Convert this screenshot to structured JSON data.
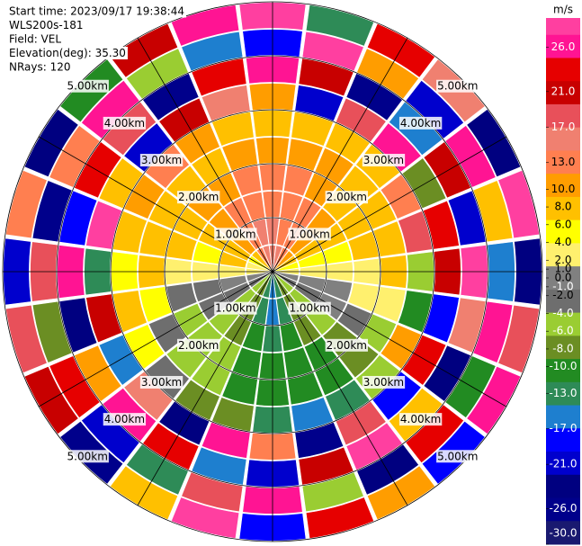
{
  "chart_data": {
    "type": "ppi",
    "info": [
      "Start time: 2023/09/17 19:38:44",
      "WLS200s-181",
      "Field: VEL",
      "Elevation(deg): 35.30",
      "NRays: 120"
    ],
    "rings": [
      {
        "value": 1,
        "label": "1.00km"
      },
      {
        "value": 2,
        "label": "2.00km"
      },
      {
        "value": 3,
        "label": "3.00km"
      },
      {
        "value": 4,
        "label": "4.00km"
      },
      {
        "value": 5,
        "label": "5.00km"
      }
    ],
    "rmax_km": 5,
    "azimuth_deg": [
      0,
      15,
      30,
      45,
      60,
      75,
      90,
      105,
      120,
      135,
      150,
      165,
      180,
      195,
      210,
      225,
      240,
      255,
      270,
      285,
      300,
      315,
      330,
      345
    ],
    "range_km": [
      0,
      0.5,
      1,
      1.5,
      2,
      2.5,
      3,
      3.5,
      4,
      4.5,
      5
    ],
    "values": [
      [
        9,
        9,
        8,
        7,
        5,
        3,
        5,
        22,
        -15,
        27
      ],
      [
        9,
        8,
        8,
        7,
        5,
        3,
        -20,
        14,
        28,
        -9
      ],
      [
        8,
        7,
        7,
        6,
        5,
        3,
        11,
        -27,
        6,
        18
      ],
      [
        6,
        6,
        5,
        4,
        3,
        3,
        24,
        -12,
        -19,
        9
      ],
      [
        4,
        4,
        3,
        3,
        2.5,
        7,
        -5,
        16,
        25,
        -24
      ],
      [
        2,
        2,
        1.5,
        2.5,
        3,
        12,
        20,
        -18,
        4,
        29
      ],
      [
        0.5,
        0.5,
        0.5,
        0.5,
        2.5,
        -3,
        15,
        27,
        -11,
        -22
      ],
      [
        -0.5,
        -0.5,
        -0.5,
        0.5,
        0.5,
        -7,
        -14,
        9,
        23,
        12
      ],
      [
        -1.5,
        -1.5,
        -0.5,
        -1.5,
        -3,
        5,
        18,
        -25,
        -7,
        26
      ],
      [
        -3,
        -3,
        -3,
        -5,
        -5,
        -3,
        -16,
        2.5,
        19,
        -13
      ],
      [
        -5,
        -5,
        -5,
        -7,
        -7,
        -9,
        11,
        28,
        -21,
        5
      ],
      [
        -9,
        -9,
        -7,
        -7,
        -7,
        -12,
        -27,
        15,
        -3,
        21
      ],
      [
        -11,
        -11,
        -9,
        -7,
        -7,
        -9,
        7,
        -19,
        25,
        -15
      ],
      [
        -9,
        -9,
        -7,
        -7,
        -7,
        -5,
        22,
        -10,
        13,
        28
      ],
      [
        -5,
        -5,
        -5,
        -3,
        -3,
        -5,
        -23,
        18,
        -8,
        3
      ],
      [
        -3,
        -3,
        -3,
        -3,
        -3,
        -1.5,
        9,
        26,
        -17,
        -26
      ],
      [
        -1.5,
        -1.5,
        -1.5,
        -3,
        -1.5,
        1.5,
        -12,
        5,
        20,
        14
      ],
      [
        -0.5,
        -0.5,
        -1.5,
        -1.5,
        1.5,
        3,
        16,
        -22,
        -4,
        11
      ],
      [
        0.5,
        0.5,
        0.5,
        0.5,
        2.5,
        1.5,
        -9,
        24,
        12,
        -19
      ],
      [
        0.5,
        2.5,
        1.5,
        2.5,
        3,
        3,
        27,
        -14,
        -28,
        7
      ],
      [
        1.5,
        3,
        3,
        3,
        3,
        5,
        3,
        19,
        8,
        -24
      ],
      [
        3,
        5,
        5,
        5,
        3,
        7,
        -18,
        11,
        23,
        -6
      ],
      [
        7,
        7,
        7,
        5,
        3,
        5,
        14,
        -26,
        -3,
        17
      ],
      [
        9,
        9,
        7,
        7,
        5,
        3,
        9,
        21,
        -12,
        25
      ]
    ],
    "colorbar": {
      "label": "m/s",
      "bounds": [
        30,
        26,
        21,
        17,
        13,
        10,
        8,
        6,
        4,
        2,
        1,
        0,
        -1,
        -2,
        -4,
        -6,
        -8,
        -10,
        -13,
        -17,
        -21,
        -26,
        -30
      ],
      "colors": [
        "#ff3fa0",
        "#ff1493",
        "#e60000",
        "#c80000",
        "#e8505a",
        "#f08070",
        "#ff7f50",
        "#ff9d00",
        "#ffc000",
        "#ffff00",
        "#fff06e",
        "#808080",
        "#6e6e6e",
        "#9acd32",
        "#6b8e23",
        "#228b22",
        "#2e8b57",
        "#1e7fcf",
        "#0000ff",
        "#0000cd",
        "#000080",
        "#00008b",
        "#191970"
      ],
      "ticks": [
        {
          "value": 26,
          "label": "26.0"
        },
        {
          "value": 21,
          "label": "21.0"
        },
        {
          "value": 17,
          "label": "17.0"
        },
        {
          "value": 13,
          "label": "13.0"
        },
        {
          "value": 10,
          "label": "10.0"
        },
        {
          "value": 8,
          "label": "8.0"
        },
        {
          "value": 6,
          "label": "6.0"
        },
        {
          "value": 4,
          "label": "4.0"
        },
        {
          "value": 2,
          "label": "2.0"
        },
        {
          "value": 1,
          "label": "1.0"
        },
        {
          "value": 0,
          "label": "0.0"
        },
        {
          "value": -1,
          "label": "-1.0"
        },
        {
          "value": -2,
          "label": "-2.0"
        },
        {
          "value": -4,
          "label": "-4.0"
        },
        {
          "value": -6,
          "label": "-6.0"
        },
        {
          "value": -8,
          "label": "-8.0"
        },
        {
          "value": -10,
          "label": "-10.0"
        },
        {
          "value": -13,
          "label": "-13.0"
        },
        {
          "value": -17,
          "label": "-17.0"
        },
        {
          "value": -21,
          "label": "-21.0"
        },
        {
          "value": -26,
          "label": "-26.0"
        },
        {
          "value": -30,
          "label": "-30.0"
        }
      ]
    }
  }
}
